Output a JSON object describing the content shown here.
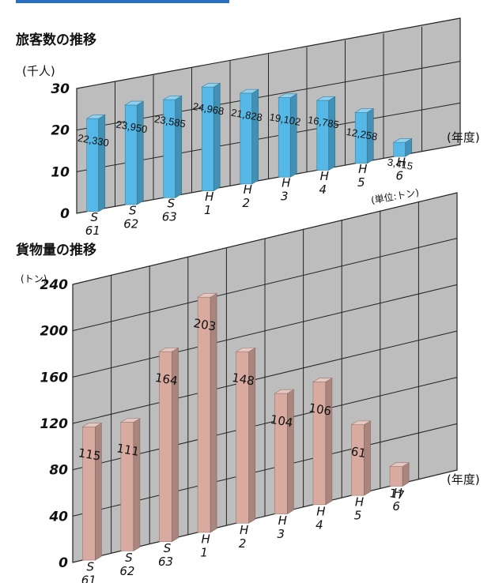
{
  "chart_data": [
    {
      "type": "bar",
      "title": "旅客数の推移",
      "unit_label": "(千人)",
      "x_unit_label": "(年度)",
      "ylim": [
        0,
        30
      ],
      "yticks": [
        "0",
        "10",
        "20",
        "30"
      ],
      "categories": [
        {
          "era": "S",
          "year": "61"
        },
        {
          "era": "S",
          "year": "62"
        },
        {
          "era": "S",
          "year": "63"
        },
        {
          "era": "H",
          "year": "1"
        },
        {
          "era": "H",
          "year": "2"
        },
        {
          "era": "H",
          "year": "3"
        },
        {
          "era": "H",
          "year": "4"
        },
        {
          "era": "H",
          "year": "5"
        },
        {
          "era": "H",
          "year": "6"
        }
      ],
      "values": [
        22330,
        23950,
        23585,
        24968,
        21828,
        19102,
        16785,
        12258,
        3415
      ],
      "value_labels": [
        "22,330",
        "23,950",
        "23,585",
        "24,968",
        "21,828",
        "19,102",
        "16,785",
        "12,258",
        "3,415"
      ],
      "bar_color": "#55b8e6",
      "grid": true
    },
    {
      "type": "bar",
      "title": "貨物量の推移",
      "unit_label": "(トン)",
      "unit_note": "(単位:トン)",
      "x_unit_label": "(年度)",
      "ylim": [
        0,
        240
      ],
      "yticks": [
        "0",
        "40",
        "80",
        "120",
        "160",
        "200",
        "240"
      ],
      "categories": [
        {
          "era": "S",
          "year": "61"
        },
        {
          "era": "S",
          "year": "62"
        },
        {
          "era": "S",
          "year": "63"
        },
        {
          "era": "H",
          "year": "1"
        },
        {
          "era": "H",
          "year": "2"
        },
        {
          "era": "H",
          "year": "3"
        },
        {
          "era": "H",
          "year": "4"
        },
        {
          "era": "H",
          "year": "5"
        },
        {
          "era": "H",
          "year": "6"
        }
      ],
      "values": [
        115,
        111,
        164,
        203,
        148,
        104,
        106,
        61,
        17
      ],
      "value_labels": [
        "115",
        "111",
        "164",
        "203",
        "148",
        "104",
        "106",
        "61",
        "17"
      ],
      "bar_color": "#d9aaa0",
      "grid": true
    }
  ]
}
